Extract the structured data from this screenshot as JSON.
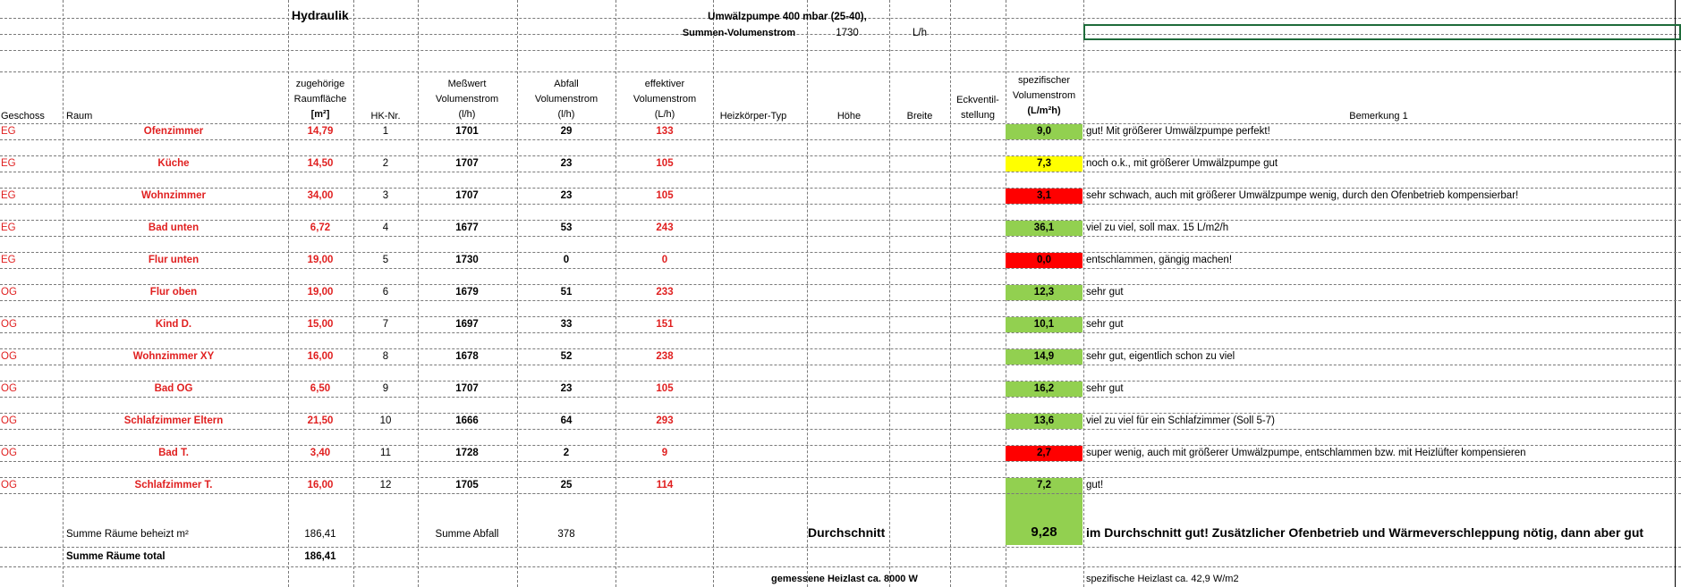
{
  "title": "Hydraulik",
  "pump": {
    "label": "Umwälzpumpe  400  mbar (25-40),",
    "sum_label": "Summen-Volumenstrom",
    "sum_value": "1730",
    "sum_unit": "L/h"
  },
  "headers": {
    "geschoss": "Geschoss",
    "raum": "Raum",
    "flaeche": [
      "zugehörige",
      "Raumfläche",
      "[m²]"
    ],
    "hk": "HK-Nr.",
    "messwert": [
      "Meßwert",
      "Volumenstrom",
      "(l/h)"
    ],
    "abfall": [
      "Abfall",
      "Volumenstrom",
      "(l/h)"
    ],
    "effektiv": [
      "effektiver",
      "Volumenstrom",
      "(L/h)"
    ],
    "heizkoerper": "Heizkörper-Typ",
    "hoehe": "Höhe",
    "breite": "Breite",
    "eckventil": [
      "Eckventil-",
      "stellung"
    ],
    "spezifisch": [
      "spezifischer",
      "Volumenstrom",
      "(L/m²h)"
    ],
    "bemerkung": "Bemerkung 1"
  },
  "colors": {
    "green": "#92d050",
    "yellow": "#ffff00",
    "red": "#ff0000",
    "accent_text": "#e02020",
    "selection": "#1e6b3a"
  },
  "rows": [
    {
      "geschoss": "EG",
      "raum": "Ofenzimmer",
      "flaeche": "14,79",
      "hk": "1",
      "messwert": "1701",
      "abfall": "29",
      "effektiv": "133",
      "spez": "9,0",
      "status": "green",
      "bemerkung": "gut! Mit größerer Umwälzpumpe perfekt!"
    },
    {
      "geschoss": "EG",
      "raum": "Küche",
      "flaeche": "14,50",
      "hk": "2",
      "messwert": "1707",
      "abfall": "23",
      "effektiv": "105",
      "spez": "7,3",
      "status": "yellow",
      "bemerkung": "noch o.k., mit größerer Umwälzpumpe gut"
    },
    {
      "geschoss": "EG",
      "raum": "Wohnzimmer",
      "flaeche": "34,00",
      "hk": "3",
      "messwert": "1707",
      "abfall": "23",
      "effektiv": "105",
      "spez": "3,1",
      "status": "red",
      "bemerkung": "sehr schwach, auch mit größerer Umwälzpumpe wenig, durch den Ofenbetrieb kompensierbar!"
    },
    {
      "geschoss": "EG",
      "raum": "Bad unten",
      "flaeche": "6,72",
      "hk": "4",
      "messwert": "1677",
      "abfall": "53",
      "effektiv": "243",
      "spez": "36,1",
      "status": "green",
      "bemerkung": "viel zu viel, soll max. 15 L/m2/h"
    },
    {
      "geschoss": "EG",
      "raum": "Flur unten",
      "flaeche": "19,00",
      "hk": "5",
      "messwert": "1730",
      "abfall": "0",
      "effektiv": "0",
      "spez": "0,0",
      "status": "red",
      "bemerkung": "entschlammen, gängig machen!"
    },
    {
      "geschoss": "OG",
      "raum": "Flur oben",
      "flaeche": "19,00",
      "hk": "6",
      "messwert": "1679",
      "abfall": "51",
      "effektiv": "233",
      "spez": "12,3",
      "status": "green",
      "bemerkung": "sehr gut"
    },
    {
      "geschoss": "OG",
      "raum": "Kind D.",
      "flaeche": "15,00",
      "hk": "7",
      "messwert": "1697",
      "abfall": "33",
      "effektiv": "151",
      "spez": "10,1",
      "status": "green",
      "bemerkung": "sehr gut"
    },
    {
      "geschoss": "OG",
      "raum": "Wohnzimmer XY",
      "flaeche": "16,00",
      "hk": "8",
      "messwert": "1678",
      "abfall": "52",
      "effektiv": "238",
      "spez": "14,9",
      "status": "green",
      "bemerkung": "sehr gut, eigentlich schon zu viel"
    },
    {
      "geschoss": "OG",
      "raum": "Bad OG",
      "flaeche": "6,50",
      "hk": "9",
      "messwert": "1707",
      "abfall": "23",
      "effektiv": "105",
      "spez": "16,2",
      "status": "green",
      "bemerkung": "sehr gut"
    },
    {
      "geschoss": "OG",
      "raum": "Schlafzimmer Eltern",
      "flaeche": "21,50",
      "hk": "10",
      "messwert": "1666",
      "abfall": "64",
      "effektiv": "293",
      "spez": "13,6",
      "status": "green",
      "bemerkung": "viel zu viel für ein Schlafzimmer (Soll 5-7)"
    },
    {
      "geschoss": "OG",
      "raum": "Bad T.",
      "flaeche": "3,40",
      "hk": "11",
      "messwert": "1728",
      "abfall": "2",
      "effektiv": "9",
      "spez": "2,7",
      "status": "red",
      "bemerkung": "super wenig, auch mit größerer Umwälzpumpe, entschlammen bzw. mit Heizlüfter kompensieren"
    },
    {
      "geschoss": "OG",
      "raum": "Schlafzimmer T.",
      "flaeche": "16,00",
      "hk": "12",
      "messwert": "1705",
      "abfall": "25",
      "effektiv": "114",
      "spez": "7,2",
      "status": "green",
      "bemerkung": "gut!"
    }
  ],
  "summary": {
    "beheizt_label": "Summe Räume  beheizt m²",
    "beheizt_value": "186,41",
    "abfall_label": "Summe Abfall",
    "abfall_value": "378",
    "durchschnitt_label": "Durchschnitt",
    "durchschnitt_value": "9,28",
    "durchschnitt_note": "im Durchschnitt gut! Zusätzlicher Ofenbetrieb und Wärmeverschleppung nötig, dann aber gut",
    "total_label": "Summe Räume total",
    "total_value": "186,41",
    "heizlast": "gemessene Heizlast ca. 8000 W",
    "spez_heizlast": "spezifische Heizlast ca. 42,9 W/m2"
  }
}
